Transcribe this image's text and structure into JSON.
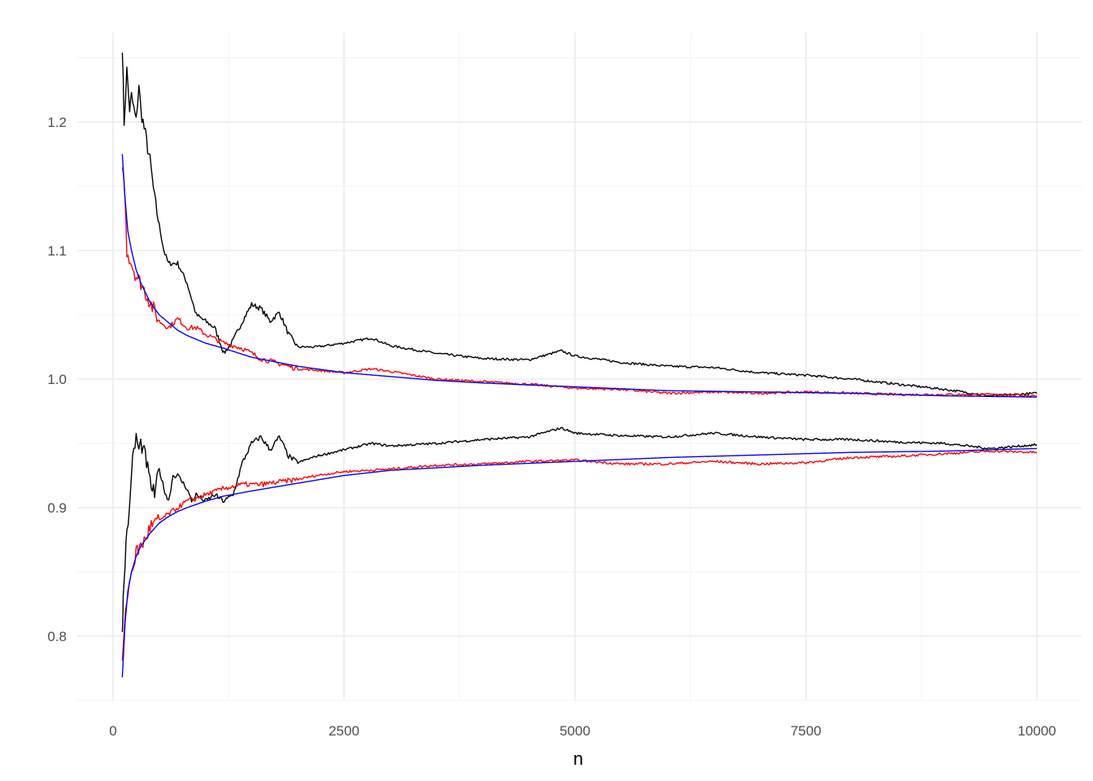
{
  "chart_data": {
    "type": "line",
    "title": "",
    "xlabel": "n",
    "ylabel": "",
    "xlim": [
      0,
      10000
    ],
    "ylim": [
      0.75,
      1.27
    ],
    "x_ticks": [
      0,
      2500,
      5000,
      7500,
      10000
    ],
    "x_tick_labels": [
      "0",
      "2500",
      "5000",
      "7500",
      "10000"
    ],
    "y_ticks": [
      0.8,
      0.9,
      1.0,
      1.1,
      1.2
    ],
    "y_tick_labels": [
      "0.8",
      "0.9",
      "1.0",
      "1.1",
      "1.2"
    ],
    "grid": true,
    "legend": "none",
    "series": [
      {
        "name": "upper-black",
        "color": "#000000",
        "x": [
          100,
          120,
          150,
          180,
          200,
          250,
          280,
          300,
          350,
          400,
          450,
          500,
          550,
          600,
          700,
          800,
          900,
          1000,
          1100,
          1200,
          1300,
          1400,
          1500,
          1600,
          1700,
          1800,
          1900,
          2000,
          2200,
          2500,
          2800,
          3000,
          3500,
          4000,
          4500,
          4850,
          5000,
          5500,
          6000,
          6500,
          7000,
          7500,
          8000,
          8500,
          9000,
          9500,
          10000
        ],
        "y": [
          1.26,
          1.2,
          1.24,
          1.21,
          1.22,
          1.2,
          1.23,
          1.21,
          1.19,
          1.17,
          1.14,
          1.12,
          1.1,
          1.09,
          1.09,
          1.075,
          1.05,
          1.045,
          1.04,
          1.02,
          1.03,
          1.045,
          1.058,
          1.055,
          1.045,
          1.052,
          1.035,
          1.025,
          1.025,
          1.028,
          1.032,
          1.026,
          1.02,
          1.016,
          1.015,
          1.022,
          1.018,
          1.013,
          1.01,
          1.009,
          1.005,
          1.003,
          1.0,
          0.996,
          0.992,
          0.987,
          0.989
        ]
      },
      {
        "name": "upper-red",
        "color": "#ff0000",
        "x": [
          100,
          130,
          150,
          200,
          250,
          300,
          400,
          500,
          600,
          700,
          800,
          900,
          1000,
          1200,
          1400,
          1600,
          1800,
          2000,
          2200,
          2500,
          2800,
          3000,
          3500,
          4000,
          4500,
          5000,
          5500,
          6000,
          6500,
          7000,
          7500,
          8000,
          8500,
          9000,
          9500,
          10000
        ],
        "y": [
          1.17,
          1.14,
          1.1,
          1.09,
          1.08,
          1.075,
          1.06,
          1.045,
          1.04,
          1.047,
          1.04,
          1.04,
          1.035,
          1.028,
          1.024,
          1.016,
          1.012,
          1.008,
          1.007,
          1.005,
          1.008,
          1.006,
          1.0,
          0.998,
          0.996,
          0.993,
          0.992,
          0.989,
          0.99,
          0.989,
          0.99,
          0.989,
          0.988,
          0.988,
          0.988,
          0.987
        ]
      },
      {
        "name": "upper-blue",
        "color": "#0000ff",
        "x": [
          100,
          130,
          160,
          200,
          250,
          300,
          400,
          500,
          600,
          700,
          800,
          1000,
          1200,
          1500,
          2000,
          2500,
          3000,
          3500,
          4000,
          5000,
          6000,
          7000,
          8000,
          9000,
          10000
        ],
        "y": [
          1.175,
          1.14,
          1.115,
          1.1,
          1.085,
          1.075,
          1.06,
          1.05,
          1.044,
          1.038,
          1.034,
          1.028,
          1.024,
          1.017,
          1.01,
          1.005,
          1.002,
          0.999,
          0.997,
          0.994,
          0.991,
          0.99,
          0.989,
          0.987,
          0.986
        ]
      },
      {
        "name": "lower-black",
        "color": "#000000",
        "x": [
          100,
          110,
          130,
          150,
          180,
          200,
          250,
          280,
          300,
          350,
          400,
          450,
          500,
          550,
          600,
          650,
          700,
          800,
          850,
          900,
          1000,
          1100,
          1200,
          1300,
          1400,
          1500,
          1600,
          1700,
          1800,
          1900,
          2000,
          2200,
          2500,
          2800,
          3000,
          3500,
          4000,
          4500,
          4850,
          5000,
          5500,
          6000,
          6500,
          7000,
          7500,
          8000,
          8500,
          9000,
          9500,
          10000
        ],
        "y": [
          0.8,
          0.83,
          0.86,
          0.88,
          0.9,
          0.93,
          0.955,
          0.945,
          0.95,
          0.94,
          0.92,
          0.91,
          0.93,
          0.915,
          0.905,
          0.925,
          0.925,
          0.915,
          0.905,
          0.91,
          0.905,
          0.91,
          0.905,
          0.91,
          0.935,
          0.95,
          0.955,
          0.945,
          0.955,
          0.94,
          0.935,
          0.94,
          0.945,
          0.95,
          0.948,
          0.95,
          0.953,
          0.955,
          0.962,
          0.958,
          0.956,
          0.955,
          0.958,
          0.955,
          0.953,
          0.953,
          0.951,
          0.95,
          0.946,
          0.949
        ]
      },
      {
        "name": "lower-red",
        "color": "#ff0000",
        "x": [
          100,
          120,
          150,
          200,
          250,
          300,
          350,
          400,
          500,
          600,
          700,
          800,
          900,
          1000,
          1200,
          1400,
          1600,
          1800,
          2000,
          2200,
          2500,
          3000,
          3500,
          4000,
          4500,
          5000,
          5500,
          6000,
          6500,
          7000,
          7500,
          8000,
          8500,
          9000,
          9500,
          10000
        ],
        "y": [
          0.78,
          0.8,
          0.83,
          0.85,
          0.865,
          0.87,
          0.875,
          0.885,
          0.89,
          0.895,
          0.9,
          0.905,
          0.907,
          0.91,
          0.915,
          0.918,
          0.918,
          0.92,
          0.922,
          0.925,
          0.928,
          0.93,
          0.933,
          0.934,
          0.936,
          0.937,
          0.934,
          0.934,
          0.936,
          0.934,
          0.935,
          0.939,
          0.94,
          0.942,
          0.944,
          0.943
        ]
      },
      {
        "name": "lower-blue",
        "color": "#0000ff",
        "x": [
          100,
          130,
          160,
          200,
          250,
          300,
          400,
          500,
          600,
          700,
          800,
          1000,
          1200,
          1500,
          2000,
          2500,
          3000,
          3500,
          4000,
          5000,
          6000,
          7000,
          8000,
          9000,
          10000
        ],
        "y": [
          0.768,
          0.81,
          0.835,
          0.85,
          0.862,
          0.87,
          0.88,
          0.888,
          0.893,
          0.897,
          0.9,
          0.905,
          0.909,
          0.913,
          0.919,
          0.925,
          0.929,
          0.931,
          0.933,
          0.936,
          0.939,
          0.941,
          0.943,
          0.944,
          0.946
        ]
      }
    ]
  }
}
